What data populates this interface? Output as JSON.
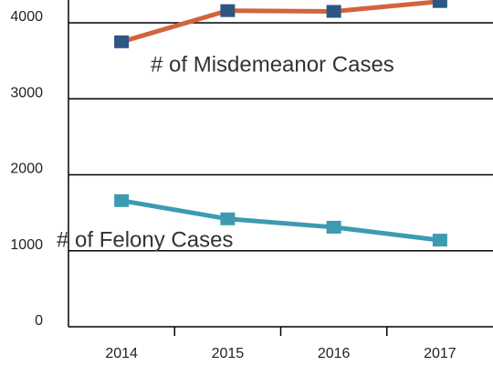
{
  "chart_data": {
    "type": "line",
    "categories": [
      "2014",
      "2015",
      "2016",
      "2017"
    ],
    "series": [
      {
        "name": "# of Misdemeanor Cases",
        "color": "#d2643c",
        "marker_color": "#2d5683",
        "values": [
          3750,
          4160,
          4150,
          4280
        ]
      },
      {
        "name": "# of Felony Cases",
        "color": "#3c9bb1",
        "marker_color": "#3c9bb1",
        "values": [
          1660,
          1420,
          1310,
          1140
        ]
      }
    ],
    "ylim": [
      0,
      4300
    ],
    "yticks": [
      0,
      1000,
      2000,
      3000,
      4000
    ],
    "grid": true
  }
}
